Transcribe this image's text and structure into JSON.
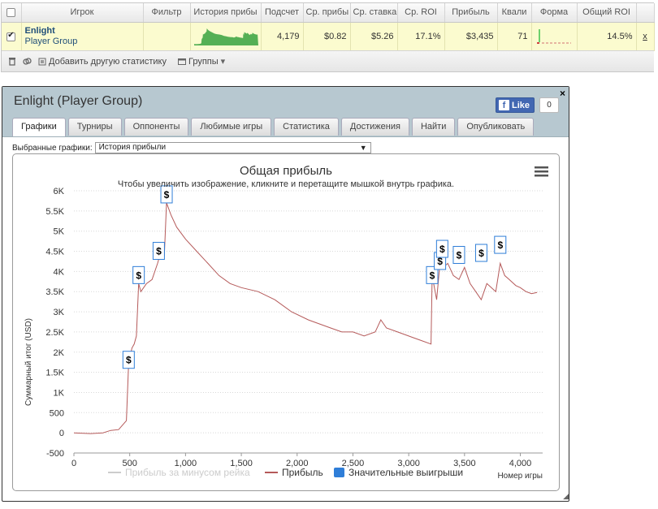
{
  "stats_table": {
    "headers": [
      "Игрок",
      "Фильтр",
      "История прибы",
      "Подсчет",
      "Ср. прибы",
      "Ср. ставка",
      "Ср. ROI",
      "Прибыль",
      "Квали",
      "Форма",
      "Общий ROI"
    ],
    "row": {
      "checked": true,
      "player_name": "Enlight",
      "player_group": "Player Group",
      "filter": "",
      "count": "4,179",
      "avg_profit": "$0.82",
      "avg_stake": "$5.26",
      "avg_roi": "17.1%",
      "profit": "$3,435",
      "qualif": "71",
      "total_roi": "14.5%",
      "remove_label": "x"
    },
    "toolbar": {
      "delete_icon": "trash-icon",
      "link_icon": "link-icon",
      "add_stat_label": "Добавить другую статистику",
      "groups_label": "Группы"
    }
  },
  "widget": {
    "title": "Enlight (Player Group)",
    "fb_like_label": "Like",
    "fb_count": "0",
    "close_label": "×",
    "tabs": [
      "Графики",
      "Турниры",
      "Оппоненты",
      "Любимые игры",
      "Статистика",
      "Достижения",
      "Найти",
      "Опубликовать"
    ],
    "active_tab": 0,
    "select_label": "Выбранные графики:",
    "select_value": "История прибыли"
  },
  "chart_data": {
    "type": "line",
    "title": "Общая прибыль",
    "subtitle": "Чтобы увеличить изображение, кликните и перетащите мышкой внутрь графика.",
    "xlabel": "Номер игры",
    "ylabel": "Суммарный итог (USD)",
    "xlim": [
      0,
      4200
    ],
    "ylim": [
      -500,
      6000
    ],
    "xticks": [
      0,
      500,
      1000,
      1500,
      2000,
      2500,
      3000,
      3500,
      4000
    ],
    "xtick_labels": [
      "0",
      "500",
      "1,000",
      "1,500",
      "2,000",
      "2,500",
      "3,000",
      "3,500",
      "4,000"
    ],
    "yticks": [
      -500,
      0,
      500,
      1000,
      1500,
      2000,
      2500,
      3000,
      3500,
      4000,
      4500,
      5000,
      5500,
      6000
    ],
    "ytick_labels": [
      "-500",
      "0",
      "500",
      "1K",
      "1.5K",
      "2K",
      "2.5K",
      "3K",
      "3.5K",
      "4K",
      "4.5K",
      "5K",
      "5.5K",
      "6K"
    ],
    "grid": "horizontal-dotted",
    "legend_position": "bottom",
    "series": [
      {
        "name": "Прибыль",
        "color": "#b55a5a",
        "points": [
          [
            0,
            0
          ],
          [
            150,
            -20
          ],
          [
            260,
            0
          ],
          [
            330,
            60
          ],
          [
            400,
            80
          ],
          [
            470,
            300
          ],
          [
            490,
            1700
          ],
          [
            520,
            2100
          ],
          [
            540,
            2200
          ],
          [
            560,
            2400
          ],
          [
            580,
            3700
          ],
          [
            600,
            3500
          ],
          [
            650,
            3700
          ],
          [
            700,
            3800
          ],
          [
            750,
            4200
          ],
          [
            780,
            4500
          ],
          [
            810,
            4400
          ],
          [
            830,
            5700
          ],
          [
            870,
            5400
          ],
          [
            920,
            5100
          ],
          [
            1000,
            4800
          ],
          [
            1100,
            4500
          ],
          [
            1200,
            4200
          ],
          [
            1300,
            3900
          ],
          [
            1400,
            3700
          ],
          [
            1500,
            3600
          ],
          [
            1650,
            3500
          ],
          [
            1800,
            3300
          ],
          [
            1950,
            3000
          ],
          [
            2100,
            2800
          ],
          [
            2200,
            2700
          ],
          [
            2300,
            2600
          ],
          [
            2400,
            2500
          ],
          [
            2500,
            2500
          ],
          [
            2600,
            2400
          ],
          [
            2700,
            2500
          ],
          [
            2750,
            2800
          ],
          [
            2800,
            2600
          ],
          [
            2900,
            2500
          ],
          [
            3000,
            2400
          ],
          [
            3100,
            2300
          ],
          [
            3200,
            2200
          ],
          [
            3210,
            3900
          ],
          [
            3250,
            3300
          ],
          [
            3290,
            4500
          ],
          [
            3310,
            4100
          ],
          [
            3350,
            4200
          ],
          [
            3400,
            3900
          ],
          [
            3450,
            3800
          ],
          [
            3500,
            4100
          ],
          [
            3550,
            3700
          ],
          [
            3600,
            3500
          ],
          [
            3650,
            3300
          ],
          [
            3700,
            3700
          ],
          [
            3780,
            3500
          ],
          [
            3820,
            4200
          ],
          [
            3860,
            3900
          ],
          [
            3900,
            3800
          ],
          [
            3960,
            3650
          ],
          [
            4000,
            3600
          ],
          [
            4050,
            3500
          ],
          [
            4100,
            3450
          ],
          [
            4150,
            3480
          ]
        ]
      },
      {
        "name": "Прибыль за минусом рейка",
        "color": "#cccccc",
        "hidden": true,
        "points": []
      }
    ],
    "big_wins_label": "Значительные выигрыши",
    "big_win_marker": "$",
    "big_wins": [
      [
        490,
        1800
      ],
      [
        580,
        3900
      ],
      [
        760,
        4500
      ],
      [
        830,
        5900
      ],
      [
        3210,
        3900
      ],
      [
        3280,
        4250
      ],
      [
        3300,
        4550
      ],
      [
        3450,
        4400
      ],
      [
        3650,
        4450
      ],
      [
        3820,
        4650
      ]
    ]
  }
}
